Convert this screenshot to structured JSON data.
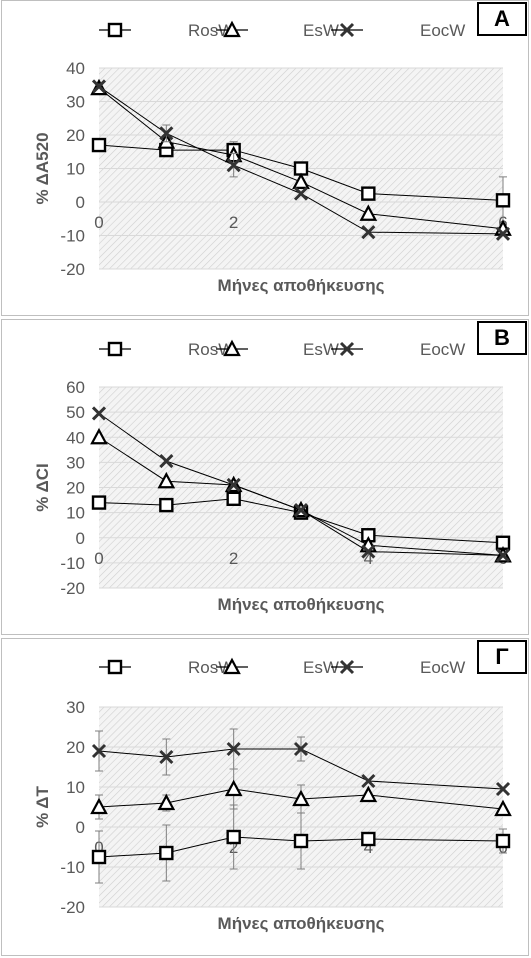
{
  "legend_labels": [
    "RosW",
    "EsW",
    "EocW"
  ],
  "chart_data": [
    {
      "type": "line",
      "panel_label": "A",
      "xlabel": "Μήνες αποθήκευσης",
      "ylabel": "% ΔA520",
      "ylim": [
        -20,
        40
      ],
      "ytick_step": 10,
      "xlim": [
        0,
        6
      ],
      "xtick_labels": [
        {
          "x": 0,
          "label": "0"
        },
        {
          "x": 2,
          "label": "2"
        },
        {
          "x": 6,
          "label": "6"
        }
      ],
      "grid": true,
      "legend": "top",
      "x": [
        0,
        1,
        2,
        3,
        4,
        6
      ],
      "series": [
        {
          "name": "RosW",
          "marker": "square",
          "values": [
            17,
            15.5,
            15.5,
            10,
            2.5,
            0.5
          ],
          "errors": [
            0,
            0,
            2.5,
            0,
            0,
            7
          ]
        },
        {
          "name": "EsW",
          "marker": "triangle",
          "values": [
            34,
            18,
            14,
            6,
            -3.5,
            -8
          ],
          "errors": [
            0,
            0,
            0,
            0,
            0,
            0
          ]
        },
        {
          "name": "EocW",
          "marker": "x",
          "values": [
            34.5,
            20.5,
            11,
            2.5,
            -9,
            -9.5
          ],
          "errors": [
            0,
            2.5,
            3.5,
            0,
            0,
            0
          ]
        }
      ]
    },
    {
      "type": "line",
      "panel_label": "B",
      "xlabel": "Μήνες αποθήκευσης",
      "ylabel": "% ΔCI",
      "ylim": [
        -20,
        60
      ],
      "ytick_step": 10,
      "xlim": [
        0,
        6
      ],
      "xtick_labels": [
        {
          "x": 0,
          "label": "0"
        },
        {
          "x": 2,
          "label": "2"
        },
        {
          "x": 4,
          "label": "4"
        },
        {
          "x": 6,
          "label": "6"
        }
      ],
      "grid": true,
      "legend": "top",
      "x": [
        0,
        1,
        2,
        3,
        4,
        6
      ],
      "series": [
        {
          "name": "RosW",
          "marker": "square",
          "values": [
            14,
            13,
            15.5,
            10,
            1,
            -2
          ],
          "errors": [
            0,
            0,
            0,
            0,
            0,
            0
          ]
        },
        {
          "name": "EsW",
          "marker": "triangle",
          "values": [
            40,
            22.5,
            21,
            11,
            -3,
            -7
          ],
          "errors": [
            0,
            0,
            0,
            0,
            0,
            0
          ]
        },
        {
          "name": "EocW",
          "marker": "x",
          "values": [
            49.5,
            30.5,
            21,
            11,
            -5.5,
            -7
          ],
          "errors": [
            0,
            0,
            0,
            0,
            0,
            0
          ]
        }
      ]
    },
    {
      "type": "line",
      "panel_label": "Γ",
      "xlabel": "Μήνες αποθήκευσης",
      "ylabel": "% ΔT",
      "ylim": [
        -20,
        30
      ],
      "ytick_step": 10,
      "xlim": [
        0,
        6
      ],
      "xtick_labels": [
        {
          "x": 0,
          "label": "0"
        },
        {
          "x": 2,
          "label": "2"
        },
        {
          "x": 4,
          "label": "4"
        },
        {
          "x": 6,
          "label": "6"
        }
      ],
      "grid": true,
      "legend": "top",
      "x": [
        0,
        1,
        2,
        3,
        4,
        6
      ],
      "series": [
        {
          "name": "RosW",
          "marker": "square",
          "values": [
            -7.5,
            -6.5,
            -2.5,
            -3.5,
            -3,
            -3.5
          ],
          "errors": [
            6.5,
            7,
            8,
            7,
            0,
            3
          ]
        },
        {
          "name": "EsW",
          "marker": "triangle",
          "values": [
            5,
            6,
            9.5,
            7,
            8,
            4.5
          ],
          "errors": [
            3,
            2,
            5,
            3.5,
            0,
            0
          ]
        },
        {
          "name": "EocW",
          "marker": "x",
          "values": [
            19,
            17.5,
            19.5,
            19.5,
            11.5,
            9.5
          ],
          "errors": [
            5,
            4.5,
            5,
            3,
            0,
            0
          ]
        }
      ]
    }
  ]
}
